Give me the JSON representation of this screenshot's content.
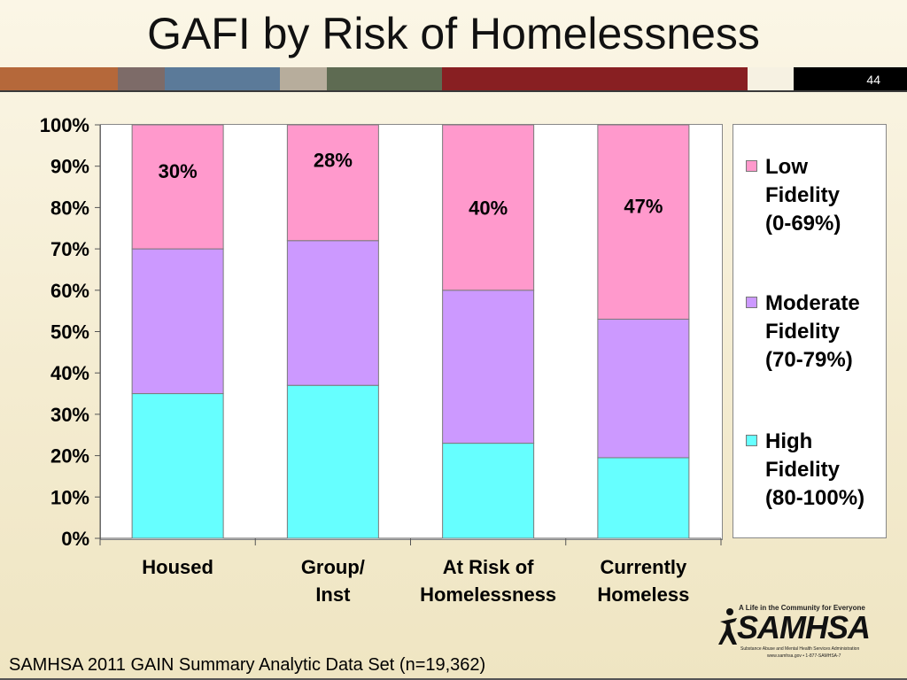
{
  "slide": {
    "title": "GAFI by Risk of Homelessness",
    "number": "44",
    "footer": "SAMHSA 2011 GAIN Summary Analytic Data Set (n=19,362)",
    "band_colors": [
      "#b5683a",
      "#7d6b68",
      "#5b7a99",
      "#b7ad9c",
      "#5e6b52",
      "#881f22",
      "#f6f1e2",
      "#000000"
    ]
  },
  "logo": {
    "tagline": "A Life in the Community for Everyone",
    "wordmark": "SAMHSA",
    "subtitle": "Substance Abuse and Mental Health Services Administration",
    "contact": "www.samhsa.gov • 1-877-SAMHSA-7"
  },
  "chart_data": {
    "type": "bar",
    "stacked": true,
    "title": "",
    "xlabel": "",
    "ylabel": "",
    "ylim": [
      0,
      100
    ],
    "yticks": [
      "0%",
      "10%",
      "20%",
      "30%",
      "40%",
      "50%",
      "60%",
      "70%",
      "80%",
      "90%",
      "100%"
    ],
    "categories": [
      "Housed",
      "Group/\nInst",
      "At Risk of\nHomelessness",
      "Currently\nHomeless"
    ],
    "series": [
      {
        "name": "High Fidelity (80-100%)",
        "color": "#66ffff",
        "values": [
          35,
          37,
          23,
          19.5
        ]
      },
      {
        "name": "Moderate Fidelity (70-79%)",
        "color": "#cc99ff",
        "values": [
          35,
          35,
          37,
          33.5
        ]
      },
      {
        "name": "Low Fidelity (0-69%)",
        "color": "#ff99cc",
        "values": [
          30,
          28,
          40,
          47
        ]
      }
    ],
    "data_labels": [
      "30%",
      "28%",
      "40%",
      "47%"
    ],
    "legend": {
      "placement": "right",
      "entries": [
        "Low\nFidelity\n(0-69%)",
        "Moderate\nFidelity\n(70-79%)",
        "High\nFidelity\n(80-100%)"
      ]
    },
    "grid": false
  }
}
